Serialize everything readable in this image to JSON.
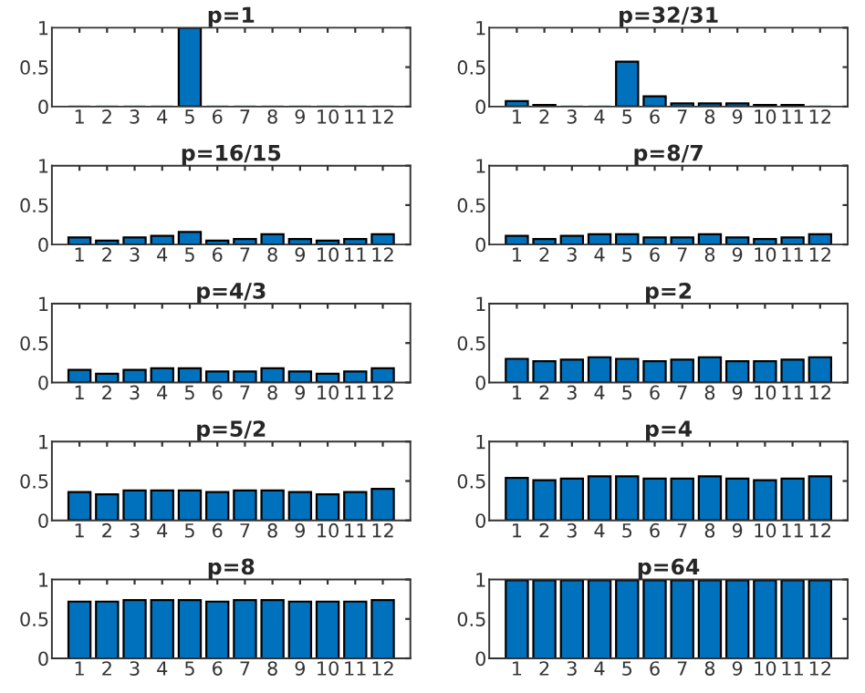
{
  "chart_data": [
    {
      "type": "bar",
      "title": "p=1",
      "categories": [
        "1",
        "2",
        "3",
        "4",
        "5",
        "6",
        "7",
        "8",
        "9",
        "10",
        "11",
        "12"
      ],
      "values": [
        0,
        0,
        0,
        0,
        1,
        0,
        0,
        0,
        0,
        0,
        0,
        0
      ],
      "color": "#0072bd",
      "ylim": [
        0,
        1
      ],
      "yticks": [
        0,
        0.5,
        1
      ],
      "grid": false
    },
    {
      "type": "bar",
      "title": "p=32/31",
      "categories": [
        "1",
        "2",
        "3",
        "4",
        "5",
        "6",
        "7",
        "8",
        "9",
        "10",
        "11",
        "12"
      ],
      "values": [
        0.07,
        0.02,
        0,
        0,
        0.57,
        0.13,
        0.04,
        0.04,
        0.04,
        0.02,
        0.02,
        0
      ],
      "color": "#0072bd",
      "ylim": [
        0,
        1
      ],
      "yticks": [
        0,
        0.5,
        1
      ],
      "grid": false
    },
    {
      "type": "bar",
      "title": "p=16/15",
      "categories": [
        "1",
        "2",
        "3",
        "4",
        "5",
        "6",
        "7",
        "8",
        "9",
        "10",
        "11",
        "12"
      ],
      "values": [
        0.09,
        0.05,
        0.09,
        0.11,
        0.16,
        0.05,
        0.07,
        0.13,
        0.07,
        0.05,
        0.07,
        0.13
      ],
      "color": "#0072bd",
      "ylim": [
        0,
        1
      ],
      "yticks": [
        0,
        0.5,
        1
      ],
      "grid": false
    },
    {
      "type": "bar",
      "title": "p=8/7",
      "categories": [
        "1",
        "2",
        "3",
        "4",
        "5",
        "6",
        "7",
        "8",
        "9",
        "10",
        "11",
        "12"
      ],
      "values": [
        0.11,
        0.07,
        0.11,
        0.13,
        0.13,
        0.09,
        0.09,
        0.13,
        0.09,
        0.07,
        0.09,
        0.13
      ],
      "color": "#0072bd",
      "ylim": [
        0,
        1
      ],
      "yticks": [
        0,
        0.5,
        1
      ],
      "grid": false
    },
    {
      "type": "bar",
      "title": "p=4/3",
      "categories": [
        "1",
        "2",
        "3",
        "4",
        "5",
        "6",
        "7",
        "8",
        "9",
        "10",
        "11",
        "12"
      ],
      "values": [
        0.16,
        0.11,
        0.16,
        0.18,
        0.18,
        0.14,
        0.14,
        0.18,
        0.14,
        0.11,
        0.14,
        0.18
      ],
      "color": "#0072bd",
      "ylim": [
        0,
        1
      ],
      "yticks": [
        0,
        0.5,
        1
      ],
      "grid": false
    },
    {
      "type": "bar",
      "title": "p=2",
      "categories": [
        "1",
        "2",
        "3",
        "4",
        "5",
        "6",
        "7",
        "8",
        "9",
        "10",
        "11",
        "12"
      ],
      "values": [
        0.3,
        0.27,
        0.29,
        0.32,
        0.3,
        0.27,
        0.29,
        0.32,
        0.27,
        0.27,
        0.29,
        0.32
      ],
      "color": "#0072bd",
      "ylim": [
        0,
        1
      ],
      "yticks": [
        0,
        0.5,
        1
      ],
      "grid": false
    },
    {
      "type": "bar",
      "title": "p=5/2",
      "categories": [
        "1",
        "2",
        "3",
        "4",
        "5",
        "6",
        "7",
        "8",
        "9",
        "10",
        "11",
        "12"
      ],
      "values": [
        0.36,
        0.33,
        0.38,
        0.38,
        0.38,
        0.36,
        0.38,
        0.38,
        0.36,
        0.33,
        0.36,
        0.4
      ],
      "color": "#0072bd",
      "ylim": [
        0,
        1
      ],
      "yticks": [
        0,
        0.5,
        1
      ],
      "grid": false
    },
    {
      "type": "bar",
      "title": "p=4",
      "categories": [
        "1",
        "2",
        "3",
        "4",
        "5",
        "6",
        "7",
        "8",
        "9",
        "10",
        "11",
        "12"
      ],
      "values": [
        0.54,
        0.51,
        0.53,
        0.56,
        0.56,
        0.53,
        0.53,
        0.56,
        0.53,
        0.51,
        0.53,
        0.56
      ],
      "color": "#0072bd",
      "ylim": [
        0,
        1
      ],
      "yticks": [
        0,
        0.5,
        1
      ],
      "grid": false
    },
    {
      "type": "bar",
      "title": "p=8",
      "categories": [
        "1",
        "2",
        "3",
        "4",
        "5",
        "6",
        "7",
        "8",
        "9",
        "10",
        "11",
        "12"
      ],
      "values": [
        0.72,
        0.72,
        0.74,
        0.74,
        0.74,
        0.72,
        0.74,
        0.74,
        0.72,
        0.72,
        0.72,
        0.74
      ],
      "color": "#0072bd",
      "ylim": [
        0,
        1
      ],
      "yticks": [
        0,
        0.5,
        1
      ],
      "grid": false
    },
    {
      "type": "bar",
      "title": "p=64",
      "categories": [
        "1",
        "2",
        "3",
        "4",
        "5",
        "6",
        "7",
        "8",
        "9",
        "10",
        "11",
        "12"
      ],
      "values": [
        0.99,
        0.99,
        0.99,
        0.99,
        0.99,
        0.99,
        0.99,
        0.99,
        0.99,
        0.99,
        0.99,
        0.99
      ],
      "color": "#0072bd",
      "ylim": [
        0,
        1
      ],
      "yticks": [
        0,
        0.5,
        1
      ],
      "grid": false
    }
  ]
}
